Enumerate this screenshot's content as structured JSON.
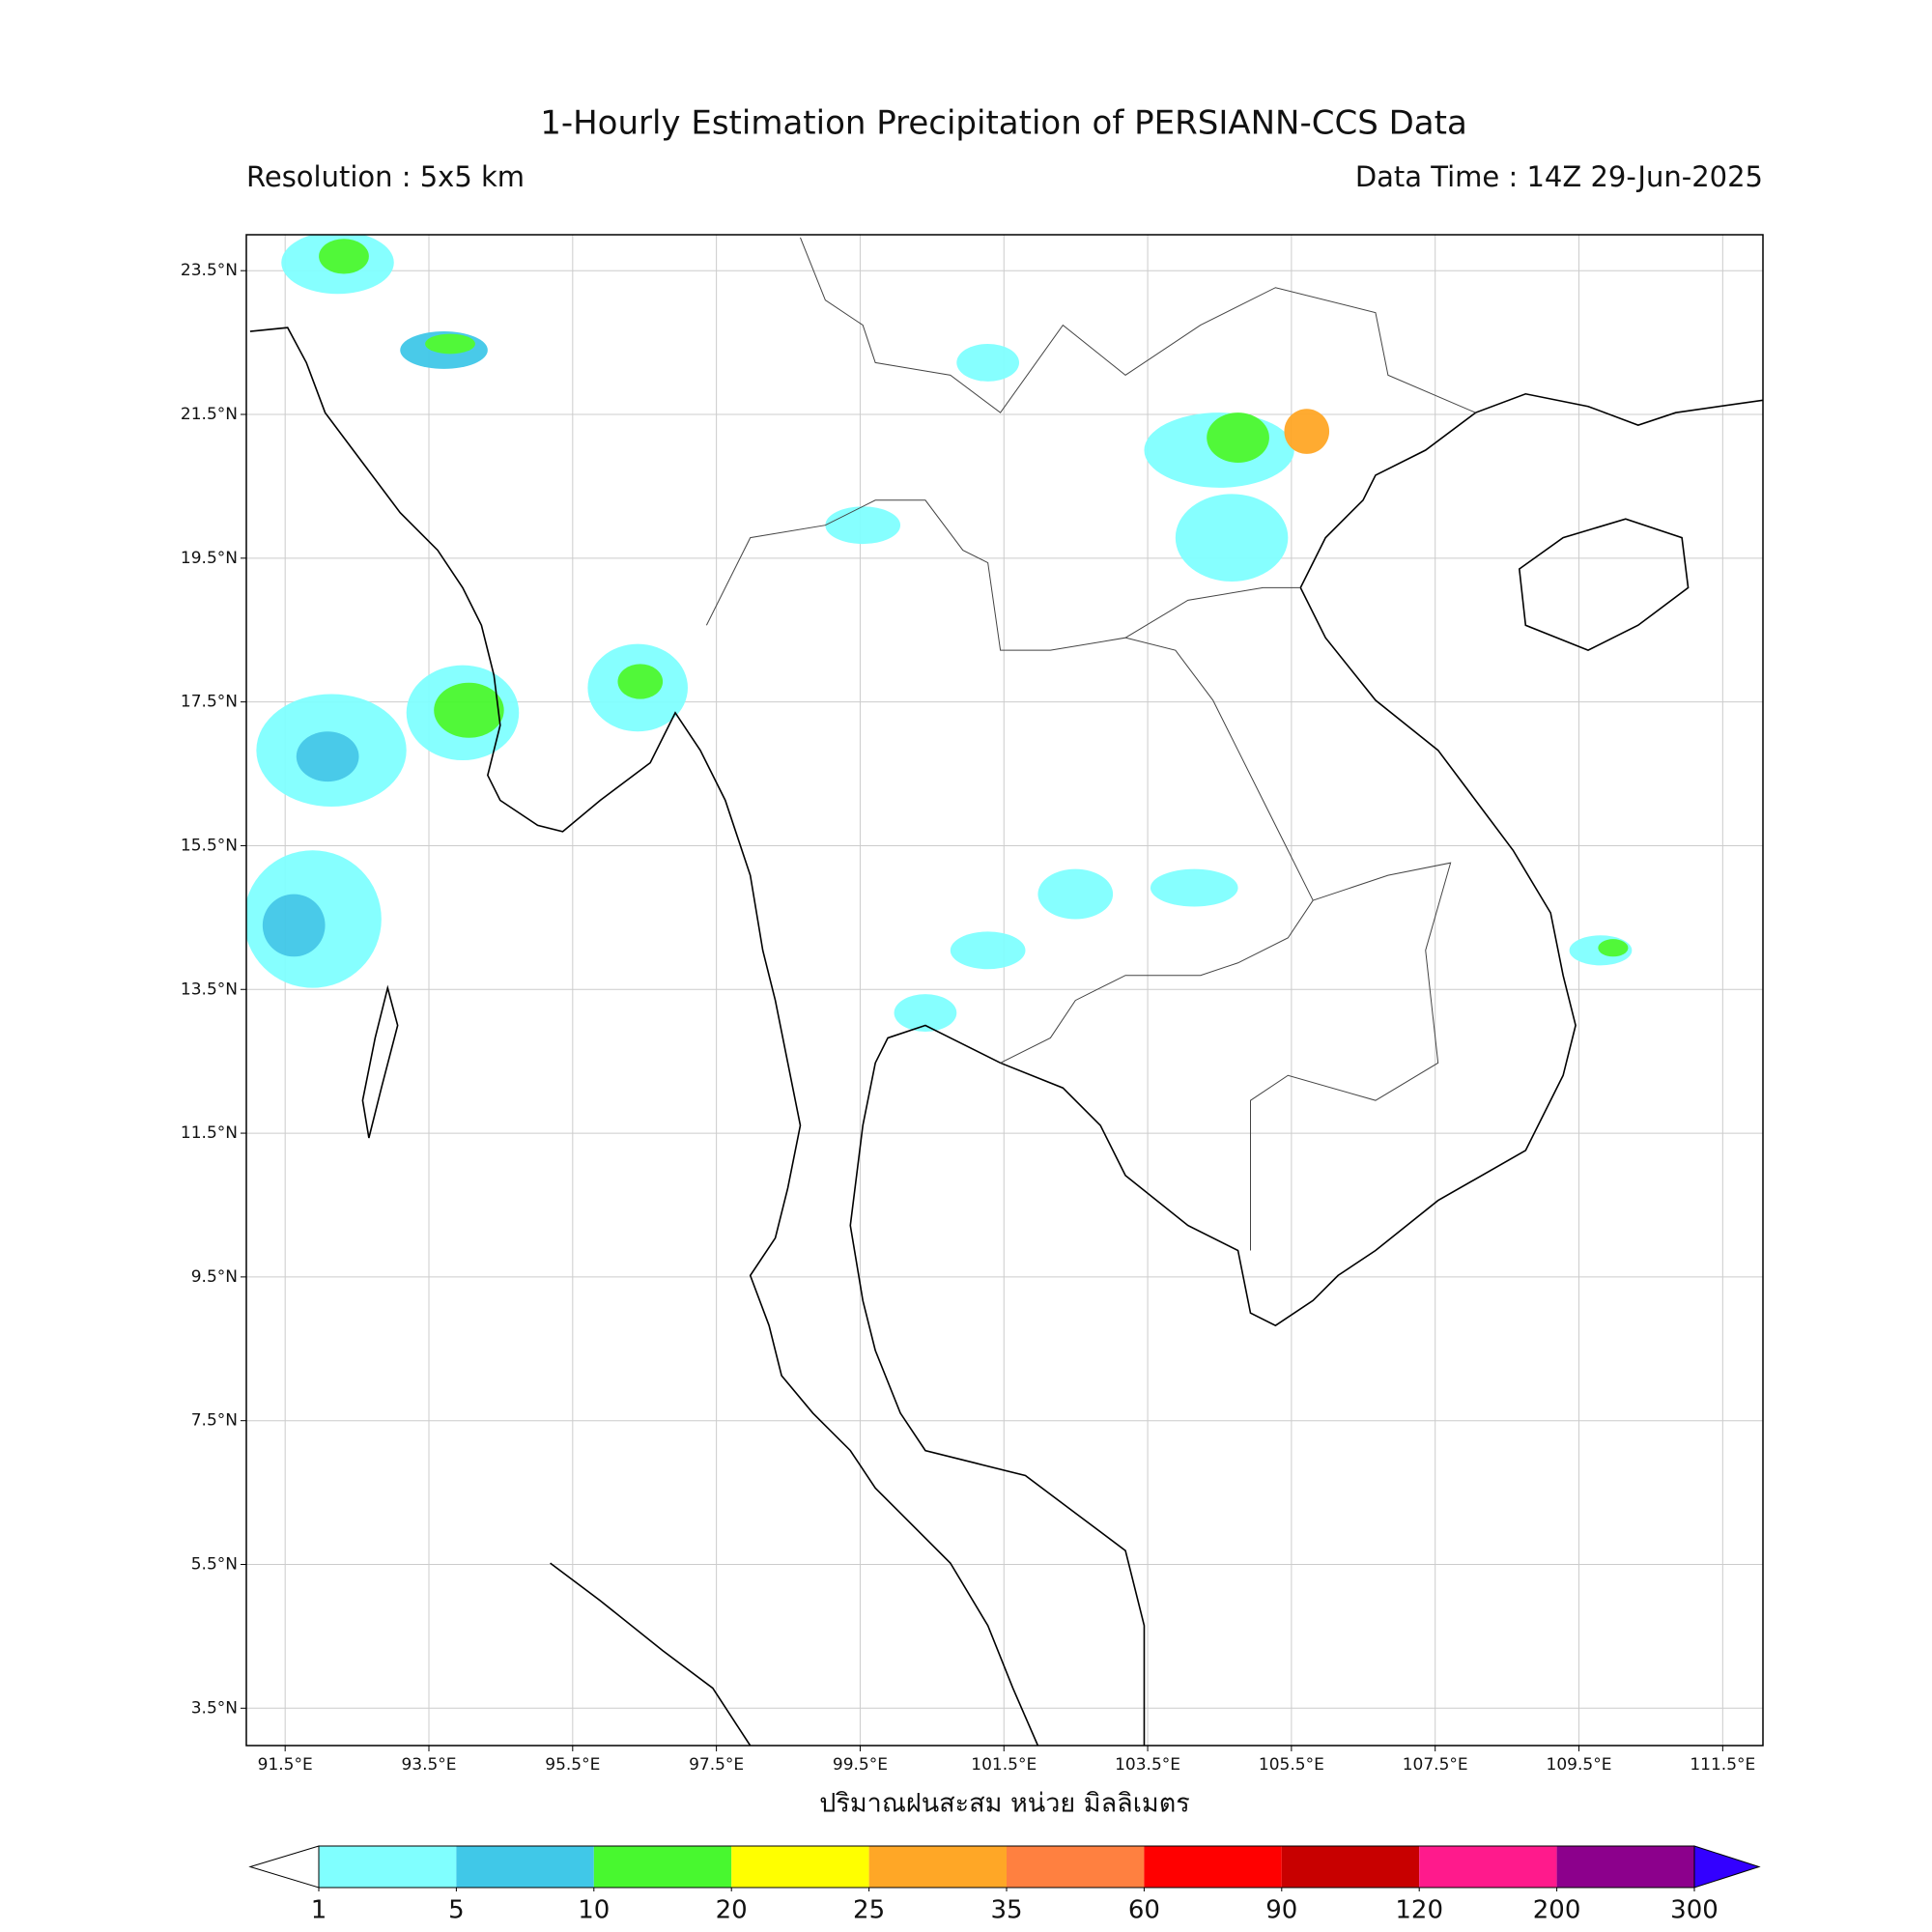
{
  "chart_data": {
    "type": "map",
    "title": "1-Hourly Estimation Precipitation of PERSIANN-CCS Data",
    "resolution": "Resolution : 5x5 km",
    "data_time": "Data Time : 14Z 29-Jun-2025",
    "xlabel": "ปริมาณฝนสะสม หน่วย มิลลิเมตร",
    "xlim": [
      90.96,
      112.06
    ],
    "ylim": [
      2.98,
      24.0
    ],
    "xticks": [
      {
        "value": 91.5,
        "label": "91.5°E"
      },
      {
        "value": 93.5,
        "label": "93.5°E"
      },
      {
        "value": 95.5,
        "label": "95.5°E"
      },
      {
        "value": 97.5,
        "label": "97.5°E"
      },
      {
        "value": 99.5,
        "label": "99.5°E"
      },
      {
        "value": 101.5,
        "label": "101.5°E"
      },
      {
        "value": 103.5,
        "label": "103.5°E"
      },
      {
        "value": 105.5,
        "label": "105.5°E"
      },
      {
        "value": 107.5,
        "label": "107.5°E"
      },
      {
        "value": 109.5,
        "label": "109.5°E"
      },
      {
        "value": 111.5,
        "label": "111.5°E"
      }
    ],
    "yticks": [
      {
        "value": 23.5,
        "label": "23.5°N"
      },
      {
        "value": 21.5,
        "label": "21.5°N"
      },
      {
        "value": 19.5,
        "label": "19.5°N"
      },
      {
        "value": 17.5,
        "label": "17.5°N"
      },
      {
        "value": 15.5,
        "label": "15.5°N"
      },
      {
        "value": 13.5,
        "label": "13.5°N"
      },
      {
        "value": 11.5,
        "label": "11.5°N"
      },
      {
        "value": 9.5,
        "label": "9.5°N"
      },
      {
        "value": 7.5,
        "label": "7.5°N"
      },
      {
        "value": 5.5,
        "label": "5.5°N"
      },
      {
        "value": 3.5,
        "label": "3.5°N"
      }
    ],
    "grid": true,
    "colorbar": {
      "ticks": [
        1,
        5,
        10,
        20,
        25,
        35,
        60,
        90,
        120,
        200,
        300
      ],
      "colors": [
        "#80ffff",
        "#40c8e8",
        "#48f82f",
        "#ffff00",
        "#ffa726",
        "#ff8040",
        "#ff0000",
        "#c80000",
        "#ff1a8c",
        "#8c008c"
      ],
      "under_color": "#ffffff",
      "over_color": "#3300ff"
    }
  }
}
